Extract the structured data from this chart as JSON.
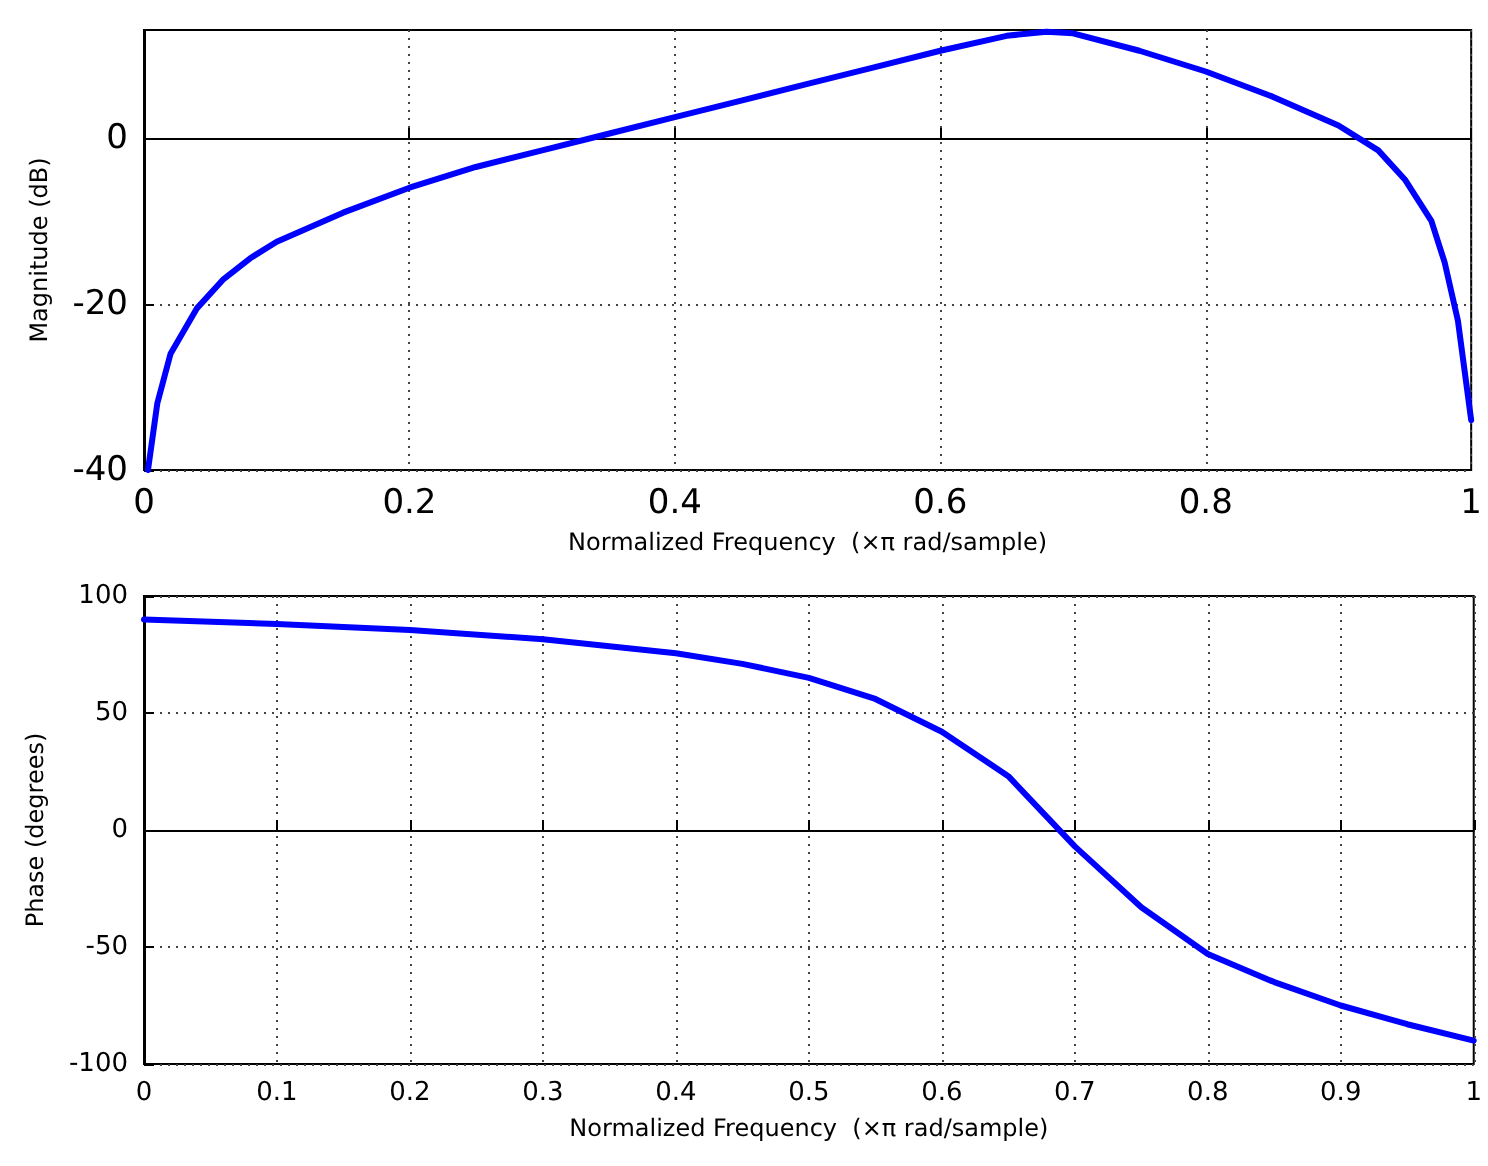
{
  "chart_data": [
    {
      "type": "line",
      "xlabel": "Normalized Frequency  (×π rad/sample)",
      "ylabel": "Magnitude (dB)",
      "xlim": [
        0,
        1
      ],
      "xticks": [
        0,
        0.2,
        0.4,
        0.6,
        0.8,
        1
      ],
      "ylim": [
        -40,
        13
      ],
      "yticks": [
        -40,
        -20,
        0
      ],
      "grid": true,
      "marker": "none",
      "line_style": "solid",
      "x": [
        0.003,
        0.01,
        0.02,
        0.04,
        0.06,
        0.08,
        0.1,
        0.15,
        0.2,
        0.25,
        0.3,
        0.35,
        0.4,
        0.45,
        0.5,
        0.55,
        0.6,
        0.65,
        0.68,
        0.7,
        0.75,
        0.8,
        0.85,
        0.9,
        0.93,
        0.95,
        0.97,
        0.98,
        0.99,
        1.0
      ],
      "series": [
        {
          "color": "#0000ff",
          "values": [
            -40,
            -32,
            -26,
            -20.5,
            -17,
            -14.5,
            -12.5,
            -9,
            -6,
            -3.5,
            -1.5,
            0.5,
            2.5,
            4.5,
            6.5,
            8.5,
            10.5,
            12.3,
            12.8,
            12.6,
            10.5,
            8,
            5,
            1.5,
            -1.5,
            -5,
            -10,
            -15,
            -22,
            -34
          ]
        }
      ]
    },
    {
      "type": "line",
      "xlabel": "Normalized Frequency  (×π rad/sample)",
      "ylabel": "Phase (degrees)",
      "xlim": [
        0,
        1
      ],
      "xticks": [
        0,
        0.1,
        0.2,
        0.3,
        0.4,
        0.5,
        0.6,
        0.7,
        0.8,
        0.9,
        1
      ],
      "ylim": [
        -100,
        100
      ],
      "yticks": [
        -100,
        -50,
        0,
        50,
        100
      ],
      "grid": true,
      "marker": "none",
      "line_style": "solid",
      "x": [
        0,
        0.1,
        0.2,
        0.3,
        0.4,
        0.45,
        0.5,
        0.55,
        0.6,
        0.65,
        0.7,
        0.75,
        0.8,
        0.85,
        0.9,
        0.95,
        1.0
      ],
      "series": [
        {
          "color": "#0000ff",
          "values": [
            90,
            88,
            85.5,
            81.5,
            75.5,
            71,
            65,
            56,
            42,
            23,
            -7,
            -33,
            -53,
            -65,
            -75,
            -83,
            -90
          ]
        }
      ]
    }
  ]
}
